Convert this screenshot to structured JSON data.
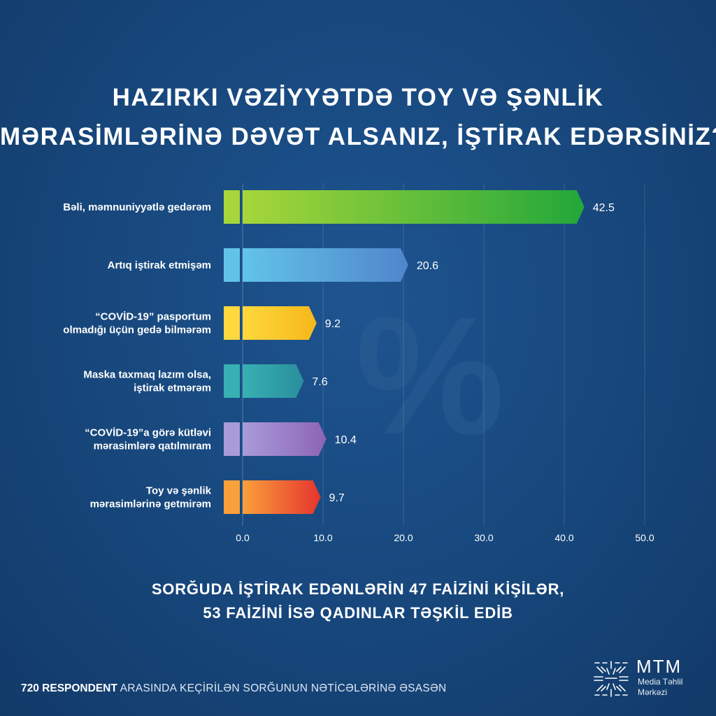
{
  "title": {
    "line1": "HAZIRKI VƏZİYYƏTDƏ TOY VƏ ŞƏNLİK",
    "line2": "MƏRASİMLƏRİNƏ DƏVƏT ALSANIZ, İŞTİRAK EDƏRSİNİZ?"
  },
  "watermark": "%",
  "chart_data": {
    "type": "bar",
    "orientation": "horizontal",
    "categories": [
      [
        "Bəli, məmnuniyyətlə gedərəm"
      ],
      [
        "Artıq iştirak etmişəm"
      ],
      [
        "“COVİD-19” pasportum",
        "olmadığı üçün gedə bilmərəm"
      ],
      [
        "Maska taxmaq lazım olsa,",
        "iştirak etmərəm"
      ],
      [
        "“COVİD-19”a görə kütləvi",
        "mərasimlərə qatılmıram"
      ],
      [
        "Toy və şənlik",
        "mərasimlərinə getmirəm"
      ]
    ],
    "values": [
      42.5,
      20.6,
      9.2,
      7.6,
      10.4,
      9.7
    ],
    "value_labels": [
      "42.5",
      "20.6",
      "9.2",
      "7.6",
      "10.4",
      "9.7"
    ],
    "xticks": [
      "0.0",
      "10.0",
      "20.0",
      "30.0",
      "40.0",
      "50.0"
    ],
    "xlim": [
      0,
      50
    ],
    "grid": true,
    "colors": [
      [
        "#a6d63a",
        "#22a73a"
      ],
      [
        "#62c3e8",
        "#5086cc"
      ],
      [
        "#ffd83d",
        "#f6b71b"
      ],
      [
        "#37b0b3",
        "#2a8e9c"
      ],
      [
        "#a99bd9",
        "#8d64b6"
      ],
      [
        "#f9a03b",
        "#e5342e"
      ]
    ]
  },
  "subtitle": {
    "line1": "SORĞUDA İŞTİRAK EDƏNLƏRİN 47 FAİZİNİ KİŞİLƏR,",
    "line2": "53 FAİZİNİ İSƏ QADINLAR TƏŞKİL EDİB"
  },
  "footer": {
    "strong": "720 RESPONDENT",
    "rest": " ARASINDA KEÇİRİLƏN SORĞUNUN NƏTİCƏLƏRİNƏ ƏSASƏN"
  },
  "logo": {
    "title": "MTM",
    "sub1": "Media Təhlil",
    "sub2": "Mərkəzi"
  }
}
